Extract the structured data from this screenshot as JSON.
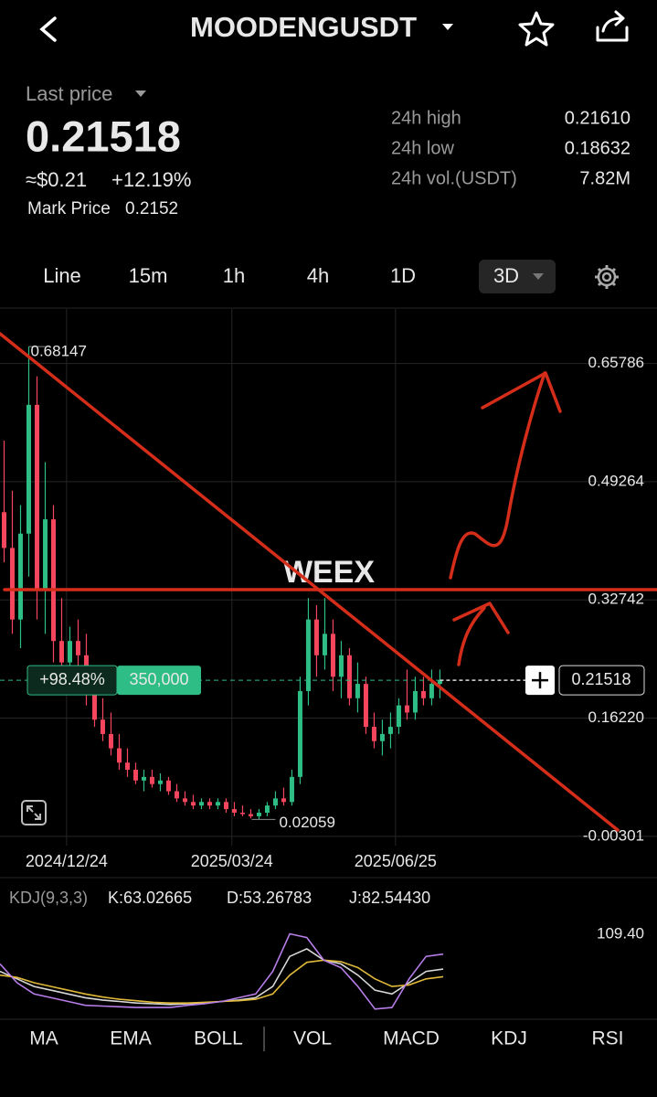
{
  "header": {
    "symbol": "MOODENGUSDT"
  },
  "price": {
    "label": "Last price",
    "last": "0.21518",
    "usd": "≈$0.21",
    "change": "+12.19%",
    "mark_label": "Mark Price",
    "mark": "0.2152"
  },
  "stats": [
    {
      "label": "24h high",
      "value": "0.21610"
    },
    {
      "label": "24h low",
      "value": "0.18632"
    },
    {
      "label": "24h vol.(USDT)",
      "value": "7.82M"
    }
  ],
  "timeframes": [
    "Line",
    "15m",
    "1h",
    "4h",
    "1D",
    "3D"
  ],
  "chart_data": {
    "type": "candlestick",
    "watermark": "WEEX",
    "up_color": "#2ebd85",
    "down_color": "#f6465d",
    "open": [
      0.45,
      0.4,
      0.3,
      0.42,
      0.6,
      0.34,
      0.44,
      0.27,
      0.24,
      0.27,
      0.25,
      0.2,
      0.16,
      0.14,
      0.12,
      0.1,
      0.09,
      0.075,
      0.08,
      0.07,
      0.075,
      0.06,
      0.05,
      0.045,
      0.04,
      0.045,
      0.04,
      0.045,
      0.035,
      0.03,
      0.028,
      0.025,
      0.03,
      0.04,
      0.05,
      0.045,
      0.08,
      0.2,
      0.3,
      0.25,
      0.28,
      0.22,
      0.25,
      0.19,
      0.21,
      0.15,
      0.13,
      0.14,
      0.15,
      0.18,
      0.17,
      0.2,
      0.19,
      0.21
    ],
    "high": [
      0.55,
      0.48,
      0.46,
      0.68147,
      0.64,
      0.52,
      0.46,
      0.33,
      0.29,
      0.3,
      0.28,
      0.22,
      0.19,
      0.17,
      0.14,
      0.12,
      0.1,
      0.09,
      0.09,
      0.085,
      0.08,
      0.07,
      0.06,
      0.055,
      0.05,
      0.05,
      0.05,
      0.05,
      0.045,
      0.04,
      0.035,
      0.035,
      0.045,
      0.06,
      0.065,
      0.09,
      0.22,
      0.33,
      0.32,
      0.33,
      0.3,
      0.27,
      0.26,
      0.24,
      0.22,
      0.17,
      0.16,
      0.17,
      0.19,
      0.23,
      0.22,
      0.22,
      0.23,
      0.23
    ],
    "low": [
      0.38,
      0.28,
      0.26,
      0.36,
      0.3,
      0.28,
      0.24,
      0.22,
      0.21,
      0.23,
      0.18,
      0.15,
      0.13,
      0.11,
      0.09,
      0.08,
      0.07,
      0.06,
      0.065,
      0.06,
      0.055,
      0.045,
      0.04,
      0.035,
      0.035,
      0.035,
      0.035,
      0.03,
      0.025,
      0.025,
      0.022,
      0.02059,
      0.025,
      0.035,
      0.04,
      0.04,
      0.07,
      0.18,
      0.22,
      0.23,
      0.2,
      0.19,
      0.18,
      0.17,
      0.14,
      0.12,
      0.11,
      0.12,
      0.14,
      0.16,
      0.16,
      0.18,
      0.18,
      0.19
    ],
    "close": [
      0.4,
      0.3,
      0.42,
      0.6,
      0.34,
      0.44,
      0.27,
      0.24,
      0.27,
      0.25,
      0.2,
      0.16,
      0.14,
      0.12,
      0.1,
      0.09,
      0.075,
      0.08,
      0.07,
      0.075,
      0.06,
      0.05,
      0.045,
      0.04,
      0.045,
      0.04,
      0.045,
      0.035,
      0.03,
      0.028,
      0.025,
      0.03,
      0.04,
      0.05,
      0.045,
      0.08,
      0.2,
      0.3,
      0.25,
      0.28,
      0.22,
      0.25,
      0.19,
      0.21,
      0.15,
      0.13,
      0.14,
      0.15,
      0.18,
      0.17,
      0.2,
      0.19,
      0.21,
      0.21518
    ],
    "xlim": [
      -0.5,
      79.4
    ],
    "xticks": [
      {
        "value": 7.6,
        "label": "2024/12/24"
      },
      {
        "value": 27.7,
        "label": "2025/03/24"
      },
      {
        "value": 47.6,
        "label": "2025/06/25"
      }
    ],
    "ylim": [
      -0.016,
      0.734
    ],
    "yticks": [
      0.65786,
      0.49264,
      0.32742,
      {
        "value": 0.1622,
        "label": "0.16220"
      },
      -0.00301
    ],
    "high_label": 0.68147,
    "low_label": 0.02059,
    "current": 0.21518,
    "position": {
      "pnl": "+98.48%",
      "size": "350,000"
    }
  },
  "kdj": {
    "title": "KDJ(9,3,3)",
    "k_label": "K:63.02665",
    "d_label": "D:53.26783",
    "j_label": "J:82.54430",
    "ylim": [
      0,
      130
    ],
    "yticks": [
      {
        "value": 109.4,
        "label": "109.40"
      }
    ],
    "series": [
      {
        "name": "K",
        "color": "#d8d8d8",
        "values": [
          60,
          50,
          40,
          35,
          30,
          25,
          22,
          20,
          18,
          17,
          16,
          17,
          18,
          20,
          22,
          25,
          40,
          80,
          90,
          75,
          70,
          55,
          35,
          30,
          45,
          60,
          63
        ]
      },
      {
        "name": "D",
        "color": "#e0b93a",
        "values": [
          55,
          52,
          45,
          40,
          35,
          30,
          26,
          23,
          21,
          19,
          18,
          18,
          19,
          20,
          21,
          23,
          30,
          55,
          72,
          75,
          73,
          65,
          50,
          40,
          42,
          50,
          53
        ]
      },
      {
        "name": "J",
        "color": "#b77de8",
        "values": [
          70,
          45,
          30,
          25,
          20,
          15,
          14,
          13,
          12,
          12,
          12,
          15,
          17,
          20,
          25,
          30,
          60,
          110,
          105,
          75,
          65,
          40,
          10,
          12,
          50,
          80,
          83
        ]
      }
    ]
  },
  "tabs": [
    "MA",
    "EMA",
    "BOLL",
    "VOL",
    "MACD",
    "KDJ",
    "RSI"
  ]
}
